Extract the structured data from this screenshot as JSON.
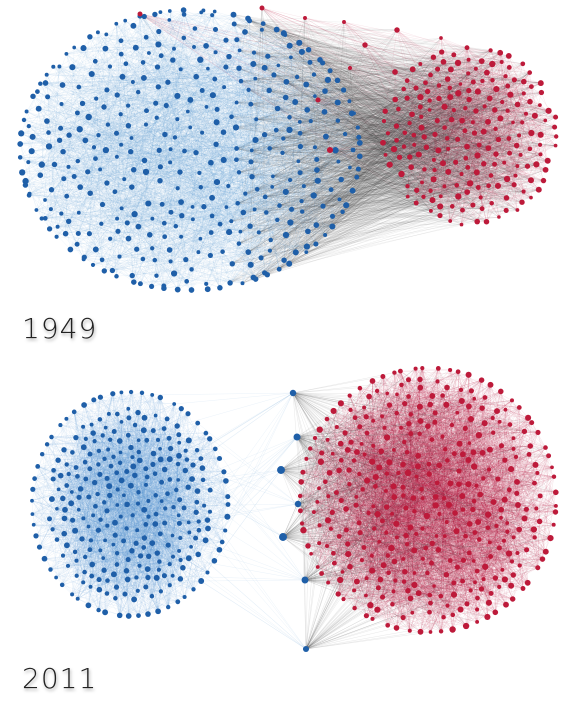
{
  "colors": {
    "democrat": "#1f5fa8",
    "republican": "#bd1a3a",
    "democrat_edge": "#4f94d0",
    "republican_edge": "#b8143a",
    "cross_edge": "#3a3a3a"
  },
  "panels": [
    {
      "year": "1949",
      "structure": "overlapping"
    },
    {
      "year": "2011",
      "structure": "polarized"
    }
  ]
}
